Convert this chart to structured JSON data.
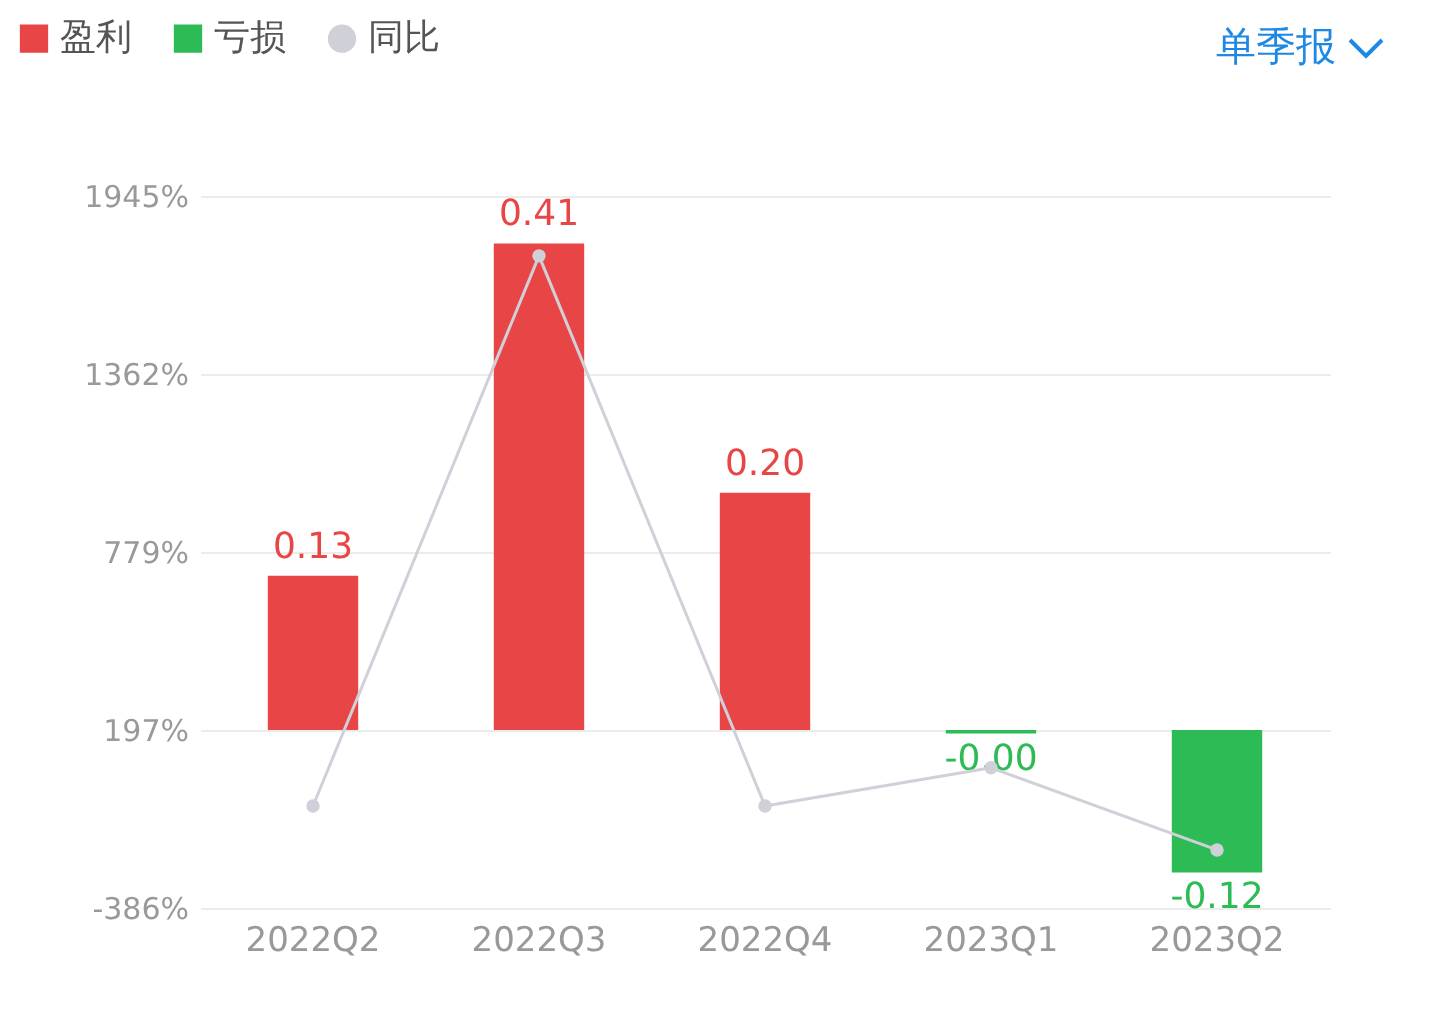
{
  "chart_data": {
    "type": "bar",
    "categories": [
      "2022Q2",
      "2022Q3",
      "2022Q4",
      "2023Q1",
      "2023Q2"
    ],
    "series": [
      {
        "name": "盈利",
        "axis": "y2",
        "color": "#e84646",
        "values": [
          0.13,
          0.41,
          0.2,
          null,
          null
        ],
        "value_labels": [
          "0.13",
          "0.41",
          "0.20",
          null,
          null
        ]
      },
      {
        "name": "亏损",
        "axis": "y2",
        "color": "#2dbb55",
        "values": [
          null,
          null,
          null,
          -0.003,
          -0.12
        ],
        "value_labels": [
          null,
          null,
          null,
          "-0.00",
          "-0.12"
        ]
      },
      {
        "name": "同比",
        "type": "line",
        "color": "#cfd0d8",
        "values": [
          -52,
          1749,
          -52,
          73,
          -196
        ]
      }
    ],
    "ylim": [
      -386,
      1945
    ],
    "yticks": [
      {
        "value": -386,
        "label": "-386%"
      },
      {
        "value": 197,
        "label": "197%"
      },
      {
        "value": 779,
        "label": "779%"
      },
      {
        "value": 1362,
        "label": "1362%"
      },
      {
        "value": 1945,
        "label": "1945%"
      }
    ],
    "y2lim": [
      -0.15,
      0.45
    ],
    "grid": "y",
    "legend": "top left",
    "marker": "circle",
    "annotations": [
      "单季报"
    ]
  }
}
